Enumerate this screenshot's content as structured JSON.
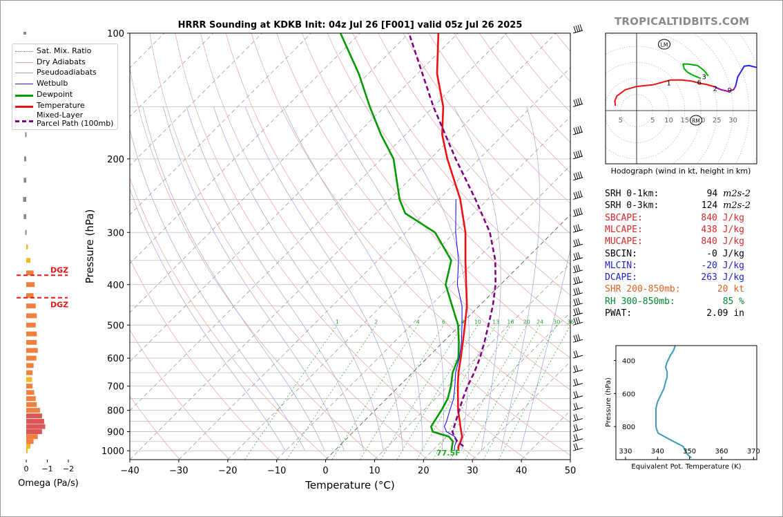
{
  "brand": "TROPICALTIDBITS.COM",
  "skewt": {
    "title": "HRRR Sounding at KDKB Init: 04z Jul 26 [F001] valid 05z Jul 26 2025",
    "xlabel": "Temperature (°C)",
    "ylabel": "Pressure (hPa)",
    "x_ticks": [
      "−40",
      "−30",
      "−20",
      "−10",
      "0",
      "10",
      "20",
      "30",
      "40",
      "50"
    ],
    "y_ticks": [
      "100",
      "200",
      "300",
      "400",
      "500",
      "600",
      "700",
      "800",
      "900",
      "1000"
    ],
    "mix_labels": [
      "1",
      "2",
      "4",
      "6",
      "8",
      "10",
      "13",
      "16",
      "20",
      "24",
      "30",
      "36"
    ],
    "surface_temp_label": "77.5F"
  },
  "legend": {
    "items": [
      {
        "label": "Sat. Mix. Ratio",
        "color": "#2ca02c"
      },
      {
        "label": "Dry Adiabats",
        "color": "#d62728"
      },
      {
        "label": "Pseudoadiabats",
        "color": "#1f3fd6"
      },
      {
        "label": "Wetbulb",
        "color": "#0000ff"
      },
      {
        "label": "Dewpoint",
        "color": "#009900"
      },
      {
        "label": "Temperature",
        "color": "#ee1111"
      },
      {
        "label": "Mixed-Layer",
        "label2": "Parcel Path (100mb)",
        "color": "#800080"
      }
    ]
  },
  "omega": {
    "xlabel": "Omega (Pa/s)",
    "ticks": [
      "0",
      "−1",
      "−2"
    ],
    "dgz_label": "DGZ"
  },
  "hodograph": {
    "caption": "Hodograph (wind in kt, height in km)",
    "ring_labels": [
      "5",
      "10",
      "15",
      "20",
      "25",
      "30"
    ],
    "left_label": "5",
    "height_labels": [
      "1",
      "3",
      "6",
      "2",
      "9"
    ],
    "lm": "LM",
    "rm": "RM"
  },
  "params": [
    {
      "label": "SRH 0-1km:",
      "value": "94",
      "unit": "m2s-2",
      "color": "#000000"
    },
    {
      "label": "SRH 0-3km:",
      "value": "124",
      "unit": "m2s-2",
      "color": "#000000"
    },
    {
      "label": "SBCAPE:",
      "value": "840 J/kg",
      "color": "#d62728"
    },
    {
      "label": "MLCAPE:",
      "value": "438 J/kg",
      "color": "#d62728"
    },
    {
      "label": "MUCAPE:",
      "value": "840 J/kg",
      "color": "#d62728"
    },
    {
      "label": "SBCIN:",
      "value": "-0 J/kg",
      "color": "#000000"
    },
    {
      "label": "MLCIN:",
      "value": "-20 J/kg",
      "color": "#2222cc"
    },
    {
      "label": "DCAPE:",
      "value": "263 J/kg",
      "color": "#2222cc"
    },
    {
      "label": "SHR 200-850mb:",
      "value": "20 kt",
      "color": "#e06020"
    },
    {
      "label": "RH 300-850mb:",
      "value": "85 %",
      "color": "#008833"
    },
    {
      "label": "PWAT:",
      "value": "2.09 in",
      "color": "#000000"
    }
  ],
  "theta_e": {
    "xlabel": "Equivalent Pot. Temperature (K)",
    "ylabel": "Pressure (hPa)",
    "x_ticks": [
      "330",
      "340",
      "350",
      "360",
      "370"
    ],
    "y_ticks": [
      "400",
      "600",
      "800"
    ]
  },
  "chart_data": [
    {
      "type": "line",
      "title": "HRRR Sounding at KDKB Init: 04z Jul 26 [F001] valid 05z Jul 26 2025",
      "xlabel": "Temperature (°C)",
      "ylabel": "Pressure (hPa)",
      "xlim": [
        -40,
        50
      ],
      "ylim": [
        1050,
        100
      ],
      "y_scale": "log",
      "grid": true,
      "legend": "upper-left",
      "series": [
        {
          "name": "Temperature",
          "color": "#ee1111",
          "pressure": [
            1000,
            975,
            950,
            925,
            900,
            875,
            850,
            800,
            750,
            700,
            650,
            600,
            550,
            500,
            450,
            400,
            350,
            300,
            250,
            200,
            175,
            150,
            125,
            100
          ],
          "values": [
            25.3,
            24.4,
            23.9,
            23.2,
            22.0,
            20.8,
            19.6,
            17.0,
            14.6,
            12.0,
            9.4,
            6.9,
            4.1,
            1.0,
            -2.5,
            -7.0,
            -12.1,
            -17.8,
            -25.6,
            -36.5,
            -42.5,
            -48.0,
            -56.0,
            -64.0
          ]
        },
        {
          "name": "Dewpoint",
          "color": "#009900",
          "pressure": [
            1000,
            975,
            950,
            925,
            900,
            875,
            850,
            800,
            750,
            700,
            650,
            600,
            550,
            500,
            450,
            400,
            350,
            300,
            270,
            250,
            200,
            175,
            150,
            125,
            100
          ],
          "values": [
            23.9,
            23.1,
            22.3,
            20.5,
            16.2,
            14.8,
            14.4,
            13.6,
            12.5,
            10.6,
            8.2,
            6.4,
            3.3,
            -0.4,
            -5.5,
            -11.2,
            -15.0,
            -24.0,
            -34.0,
            -38.0,
            -47.5,
            -55.0,
            -63.0,
            -72.0,
            -84.0
          ]
        },
        {
          "name": "Wetbulb",
          "color": "#0000ff",
          "pressure": [
            1000,
            975,
            950,
            925,
            900,
            875,
            850,
            800,
            750,
            700,
            650,
            600,
            550,
            500,
            450,
            400,
            350,
            300,
            250
          ],
          "values": [
            24.5,
            23.6,
            23.0,
            21.7,
            19.0,
            17.5,
            16.9,
            15.3,
            13.7,
            11.4,
            8.8,
            6.6,
            3.8,
            0.4,
            -3.5,
            -8.8,
            -13.5,
            -19.8,
            -26.5
          ]
        },
        {
          "name": "Mixed-Layer Parcel Path (100mb)",
          "color": "#800080",
          "pressure": [
            975,
            950,
            925,
            900,
            850,
            800,
            750,
            700,
            650,
            600,
            550,
            500,
            450,
            400,
            350,
            300,
            250,
            200,
            150,
            100
          ],
          "values": [
            25.4,
            23.2,
            21.6,
            20.2,
            18.8,
            17.2,
            15.6,
            14.0,
            12.6,
            10.8,
            8.5,
            5.8,
            2.8,
            -1.0,
            -6.0,
            -12.8,
            -22.5,
            -34.8,
            -50.0,
            -70.0
          ]
        }
      ]
    },
    {
      "type": "bar",
      "xlabel": "Omega (Pa/s)",
      "ylabel": "",
      "xlim": [
        0,
        -2
      ],
      "pressure": [
        1000,
        975,
        950,
        925,
        900,
        875,
        850,
        825,
        800,
        775,
        750,
        725,
        700,
        675,
        650,
        625,
        600,
        575,
        550,
        525,
        500,
        475,
        450,
        425,
        400,
        375,
        350,
        325,
        300,
        275,
        250,
        225,
        200,
        175,
        150,
        125,
        100
      ],
      "values": [
        -0.05,
        -0.2,
        -0.35,
        -0.55,
        -0.75,
        -0.9,
        -0.85,
        -0.75,
        -0.65,
        -0.5,
        -0.45,
        -0.38,
        -0.3,
        -0.28,
        -0.3,
        -0.35,
        -0.48,
        -0.55,
        -0.5,
        -0.5,
        -0.45,
        -0.5,
        -0.45,
        -0.35,
        -0.4,
        -0.35,
        -0.2,
        -0.08,
        0.05,
        0.12,
        0.15,
        0.12,
        0.1,
        0.05,
        0.05,
        0.05,
        0.05
      ],
      "dgz_pressure": [
        380,
        430
      ]
    },
    {
      "type": "line",
      "title": "",
      "xlabel": "",
      "ylabel": "",
      "xlim": [
        -10,
        35
      ],
      "ylim": [
        -15,
        27
      ],
      "series": [
        {
          "segment": "0-3 km",
          "color": "#ee1111",
          "u": [
            -6.6,
            -6.8,
            -6.2,
            -3.5,
            0.0,
            5.0,
            10.5,
            14.0,
            17.0,
            20.0,
            21.5,
            24.0
          ],
          "v": [
            1.5,
            3.0,
            4.5,
            6.5,
            7.5,
            8.0,
            9.5,
            9.5,
            9.2,
            8.4,
            8.2,
            7.5
          ]
        },
        {
          "segment": "3-6 km",
          "color": "#00aa00",
          "u": [
            20.0,
            17.5,
            15.8,
            14.8,
            14.5,
            16.0,
            19.0,
            21.0,
            22.3
          ],
          "v": [
            10.0,
            11.0,
            12.0,
            13.0,
            14.5,
            14.5,
            14.0,
            12.5,
            10.8
          ]
        },
        {
          "segment": "6-9 km",
          "color": "#aa00aa",
          "u": [
            24.0,
            26.3,
            28.5,
            30.2,
            30.8
          ],
          "v": [
            7.5,
            6.5,
            6.0,
            6.5,
            7.5
          ]
        },
        {
          "segment": "9-12 km",
          "color": "#2222ee",
          "u": [
            30.8,
            31.5,
            32.3,
            33.5,
            35.0,
            37.0,
            39.5
          ],
          "v": [
            7.5,
            10.5,
            11.8,
            13.8,
            14.0,
            13.5,
            13.3
          ]
        }
      ]
    },
    {
      "type": "line",
      "xlabel": "Equivalent Pot. Temperature (K)",
      "ylabel": "Pressure (hPa)",
      "xlim": [
        327,
        371
      ],
      "ylim": [
        1000,
        310
      ],
      "series": [
        {
          "name": "theta-e",
          "color": "#3a9ab8",
          "pressure": [
            310,
            340,
            370,
            410,
            440,
            470,
            500,
            530,
            570,
            610,
            650,
            690,
            720,
            760,
            790,
            800,
            820,
            840,
            880,
            920,
            960,
            970,
            990
          ],
          "values": [
            345.5,
            345.0,
            344.0,
            343.0,
            342.5,
            343.0,
            343.0,
            342.5,
            342.0,
            341.0,
            340.0,
            339.5,
            339.5,
            339.5,
            339.5,
            339.5,
            339.8,
            340.2,
            344.0,
            348.0,
            349.0,
            349.5,
            350.5
          ]
        }
      ]
    }
  ]
}
